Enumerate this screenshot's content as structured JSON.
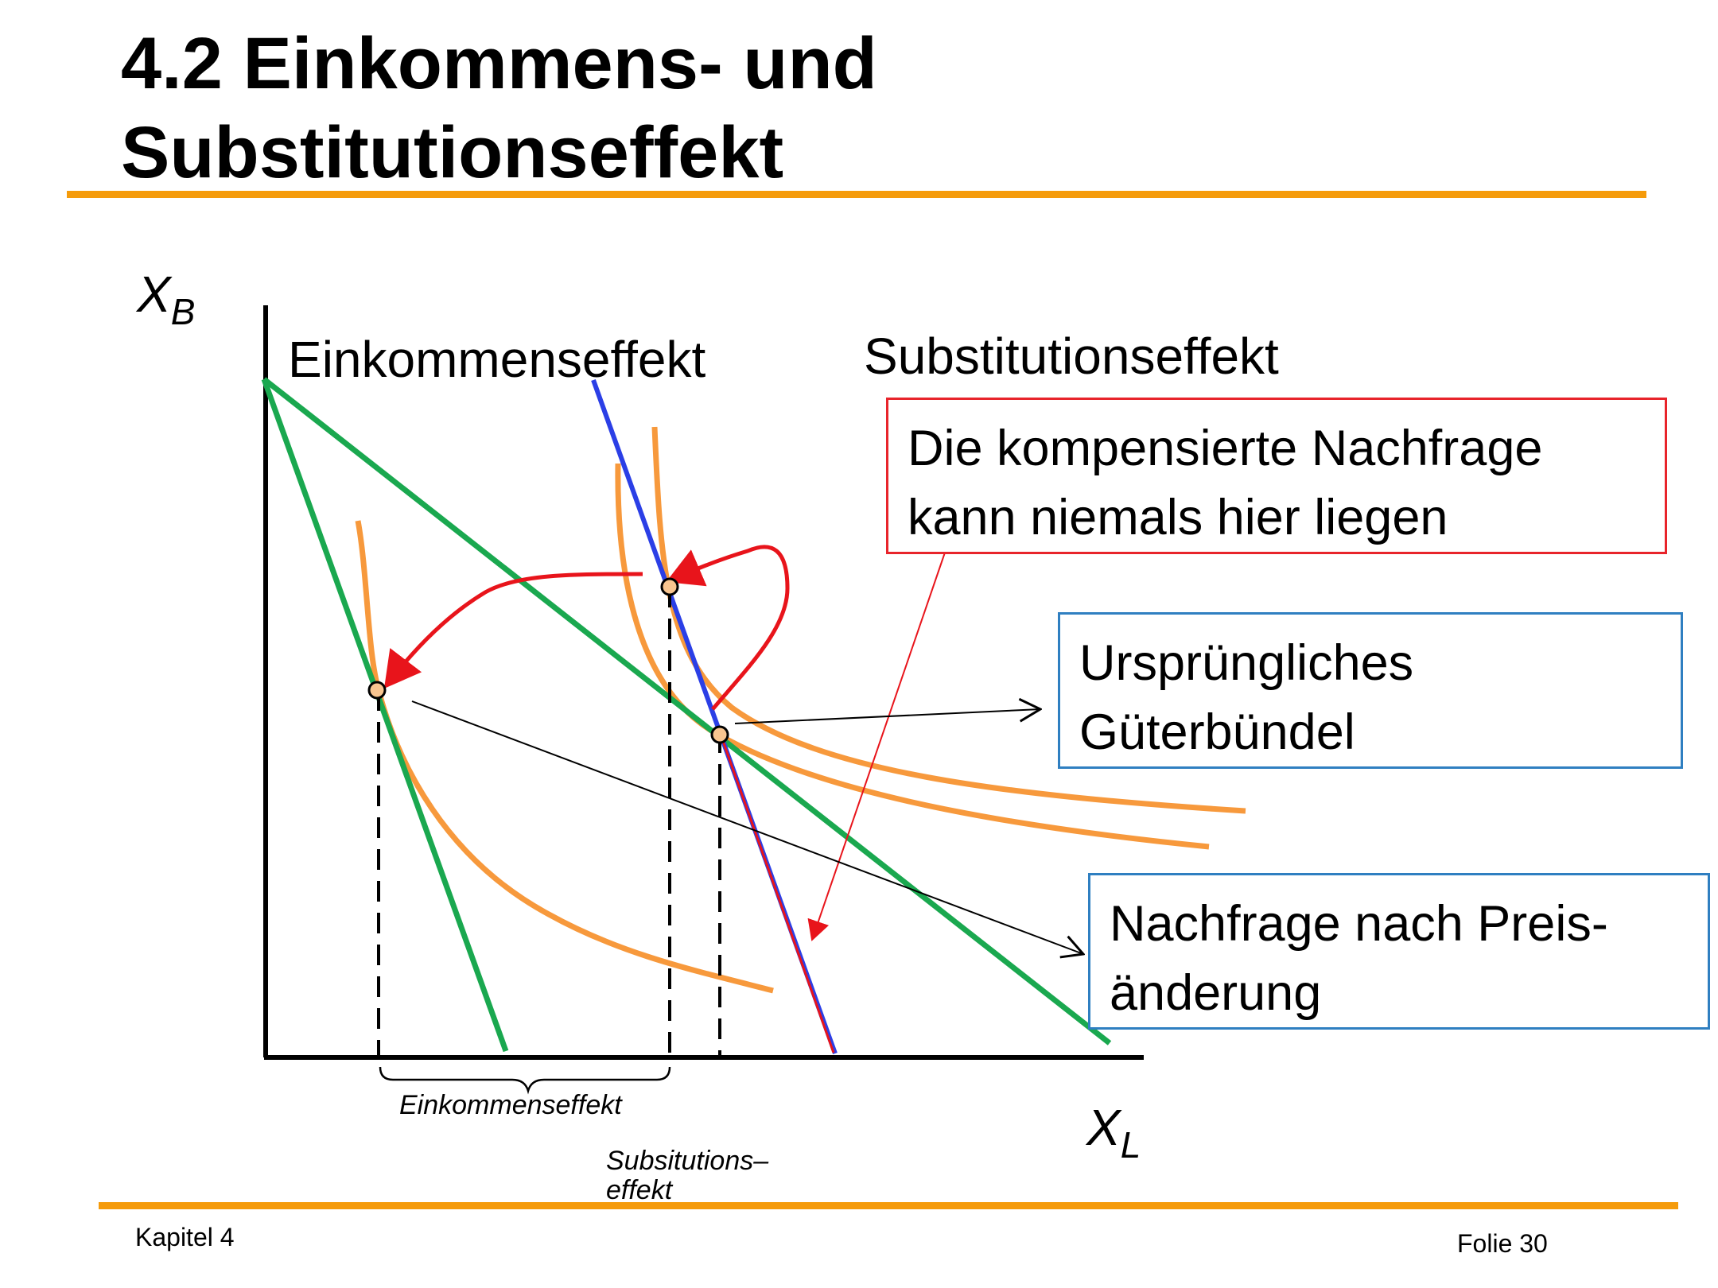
{
  "title": {
    "line1": "4.2 Einkommens- und",
    "line2": "Substitutionseffekt"
  },
  "axes": {
    "y_label": "X",
    "y_subscript": "B",
    "x_label": "X",
    "x_subscript": "L"
  },
  "headings": {
    "left": "Einkommenseffekt",
    "right": "Substitutionseffekt"
  },
  "callouts": {
    "compensated": {
      "line1": "Die kompensierte Nachfrage",
      "line2": "kann niemals hier liegen"
    },
    "original": {
      "line1": "Ursprüngliches",
      "line2": "Güterbündel"
    },
    "after": {
      "line1": "Nachfrage nach Preis-",
      "line2": "änderung"
    }
  },
  "brace_labels": {
    "income": "Einkommenseffekt",
    "substitution_line1": "Subsitutions–",
    "substitution_line2": "effekt"
  },
  "footer": {
    "left": "Kapitel 4",
    "right": "Folie 30"
  },
  "colors": {
    "accent_rule": "#f59b0b",
    "budget_line": "#1aa84f",
    "indifference_curve": "#f7993c",
    "compensated_budget": "#2b3fe6",
    "arrow_red": "#e8141b",
    "box_red": "#e8242b",
    "box_blue": "#2f7fc1",
    "point_fill": "#f8c590"
  }
}
